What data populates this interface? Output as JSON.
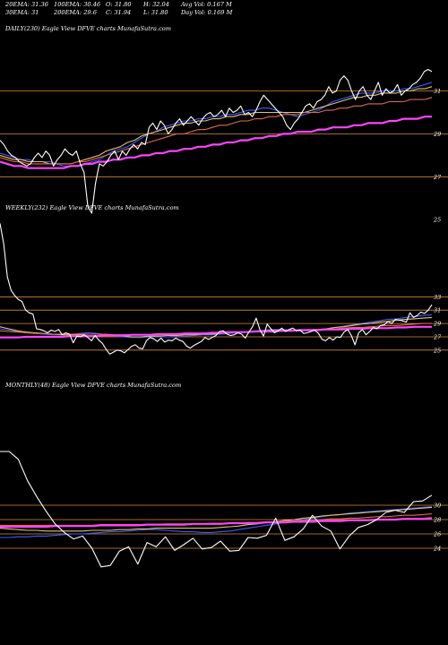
{
  "header": {
    "row1": [
      "20EMA: 31.36",
      "100EMA: 30.46",
      "O: 31.80",
      "H: 32.04",
      "Avg Vol: 0.167 M"
    ],
    "row2": [
      "30EMA: 31",
      "200EMA: 29.6",
      "C: 31.94",
      "L: 31.80",
      "Day Vol: 0.169 M"
    ]
  },
  "chart_data": [
    {
      "type": "line",
      "title": "DAILY(230) Eagle   View  DFVE charts MunafaSutra.com",
      "y_ticks": [
        31,
        29,
        27,
        25
      ],
      "ylim": [
        24.3,
        33.4
      ],
      "hlines": [
        31,
        29,
        27
      ],
      "xlim": [
        0,
        229
      ],
      "series": [
        {
          "role": "price",
          "color": "#ffffff",
          "values": [
            28.7,
            28.5,
            28.2,
            28.0,
            27.9,
            27.7,
            27.6,
            27.5,
            27.6,
            27.9,
            28.1,
            27.9,
            28.2,
            28.0,
            27.5,
            27.8,
            28.0,
            28.3,
            28.1,
            28.0,
            28.2,
            27.6,
            27.2,
            25.6,
            25.3,
            26.7,
            27.6,
            27.5,
            27.7,
            28.0,
            28.2,
            27.8,
            28.2,
            28.0,
            28.3,
            28.5,
            28.3,
            28.6,
            28.5,
            29.3,
            29.5,
            29.2,
            29.6,
            29.4,
            29.0,
            29.2,
            29.5,
            29.7,
            29.4,
            29.6,
            29.8,
            29.6,
            29.4,
            29.7,
            29.9,
            30.0,
            29.8,
            29.9,
            30.1,
            29.8,
            30.2,
            30.0,
            30.1,
            30.3,
            29.9,
            30.0,
            29.8,
            30.1,
            30.5,
            30.8,
            30.6,
            30.4,
            30.2,
            30.0,
            29.8,
            29.4,
            29.2,
            29.5,
            29.7,
            30.0,
            30.3,
            30.4,
            30.2,
            30.5,
            30.6,
            30.8,
            31.2,
            30.9,
            31.0,
            31.5,
            31.7,
            31.5,
            31.0,
            30.6,
            31.0,
            31.2,
            30.8,
            30.6,
            31.0,
            31.4,
            30.8,
            31.1,
            30.9,
            31.0,
            31.3,
            30.8,
            31.0,
            31.1,
            31.3,
            31.4,
            31.6,
            31.9,
            32.0,
            31.9
          ]
        },
        {
          "role": "ema-20",
          "color": "#3a5dff",
          "values": [
            28.1,
            28.0,
            27.9,
            27.8,
            27.8,
            27.7,
            27.7,
            27.7,
            27.6,
            27.5,
            27.5,
            27.5,
            27.6,
            27.7,
            27.8,
            28.0,
            28.2,
            28.3,
            28.4,
            28.6,
            28.8,
            29.0,
            29.1,
            29.3,
            29.4,
            29.5,
            29.6,
            29.6,
            29.7,
            29.7,
            29.8,
            29.8,
            29.9,
            29.9,
            30.0,
            30.1,
            30.1,
            30.2,
            30.2,
            30.1,
            30.0,
            29.9,
            29.8,
            29.9,
            30.0,
            30.1,
            30.3,
            30.5,
            30.6,
            30.7,
            30.8,
            30.9,
            30.9,
            30.9,
            31.0,
            31.0,
            31.0,
            31.1,
            31.1,
            31.2,
            31.3,
            31.4
          ]
        },
        {
          "role": "ema-30",
          "color": "#e8c070",
          "values": [
            28.0,
            27.9,
            27.8,
            27.8,
            27.7,
            27.7,
            27.7,
            27.6,
            27.6,
            27.6,
            27.6,
            27.7,
            27.8,
            27.9,
            28.0,
            28.2,
            28.3,
            28.4,
            28.6,
            28.7,
            28.9,
            29.0,
            29.1,
            29.2,
            29.3,
            29.4,
            29.5,
            29.5,
            29.6,
            29.6,
            29.7,
            29.7,
            29.8,
            29.8,
            29.9,
            29.9,
            30.0,
            30.0,
            30.0,
            30.0,
            30.0,
            30.0,
            30.0,
            30.0,
            30.1,
            30.2,
            30.3,
            30.4,
            30.5,
            30.6,
            30.7,
            30.7,
            30.8,
            30.8,
            30.9,
            30.9,
            30.9,
            31.0,
            31.0,
            31.1,
            31.1,
            31.2
          ]
        },
        {
          "role": "ema-100",
          "color": "#e06a4a",
          "values": [
            27.9,
            27.8,
            27.7,
            27.7,
            27.6,
            27.6,
            27.6,
            27.6,
            27.6,
            27.6,
            27.6,
            27.7,
            27.7,
            27.8,
            27.9,
            28.0,
            28.1,
            28.2,
            28.3,
            28.4,
            28.5,
            28.6,
            28.7,
            28.8,
            28.9,
            29.0,
            29.0,
            29.1,
            29.2,
            29.2,
            29.3,
            29.4,
            29.4,
            29.5,
            29.6,
            29.6,
            29.7,
            29.7,
            29.8,
            29.8,
            29.9,
            29.9,
            29.9,
            30.0,
            30.0,
            30.0,
            30.1,
            30.1,
            30.2,
            30.2,
            30.3,
            30.3,
            30.4,
            30.4,
            30.4,
            30.5,
            30.5,
            30.5,
            30.6,
            30.6,
            30.6,
            30.7
          ]
        },
        {
          "role": "ema-200",
          "color": "#ff44ff",
          "values": [
            27.7,
            27.6,
            27.5,
            27.5,
            27.4,
            27.4,
            27.4,
            27.4,
            27.4,
            27.4,
            27.5,
            27.5,
            27.6,
            27.6,
            27.7,
            27.7,
            27.8,
            27.8,
            27.9,
            27.9,
            28.0,
            28.0,
            28.1,
            28.1,
            28.2,
            28.2,
            28.3,
            28.3,
            28.4,
            28.4,
            28.5,
            28.5,
            28.6,
            28.6,
            28.7,
            28.7,
            28.8,
            28.8,
            28.9,
            28.9,
            29.0,
            29.0,
            29.1,
            29.1,
            29.1,
            29.2,
            29.2,
            29.3,
            29.3,
            29.3,
            29.4,
            29.4,
            29.5,
            29.5,
            29.5,
            29.6,
            29.6,
            29.7,
            29.7,
            29.7,
            29.8,
            29.8
          ]
        }
      ]
    },
    {
      "type": "line",
      "title": "WEEKLY(232) Eagle   View  DFVE charts MunafaSutra.com",
      "y_ticks": [
        33,
        31,
        29,
        27,
        25
      ],
      "ylim": [
        23.5,
        45
      ],
      "hlines": [
        33,
        31,
        29,
        27,
        25
      ],
      "xlim": [
        0,
        231
      ],
      "series": [
        {
          "role": "price",
          "color": "#ffffff",
          "values": [
            44,
            41,
            36,
            34,
            33.2,
            32.6,
            32.3,
            31,
            30.6,
            30.4,
            28.2,
            28.1,
            27.9,
            27.6,
            28.0,
            27.8,
            28.1,
            27.3,
            27.6,
            27.4,
            26.1,
            27.1,
            27.0,
            27.3,
            26.9,
            26.4,
            27.2,
            26.5,
            26.0,
            25.1,
            24.4,
            24.7,
            25.0,
            24.9,
            24.6,
            25.1,
            25.6,
            25.8,
            25.3,
            25.2,
            26.4,
            26.9,
            26.7,
            26.3,
            26.8,
            26.2,
            26.5,
            26.4,
            26.8,
            26.5,
            26.3,
            25.6,
            25.3,
            25.7,
            26.0,
            26.3,
            26.9,
            26.6,
            26.9,
            27.2,
            27.8,
            27.9,
            27.4,
            27.2,
            27.3,
            27.6,
            27.4,
            26.8,
            27.7,
            28.5,
            29.8,
            28.1,
            27.1,
            28.9,
            28.2,
            27.6,
            27.9,
            28.3,
            27.8,
            28.1,
            28.3,
            27.9,
            28.0,
            27.5,
            27.6,
            27.8,
            28.0,
            27.5,
            26.6,
            26.4,
            26.9,
            26.5,
            27.0,
            26.9,
            27.7,
            28.1,
            27.2,
            25.8,
            27.6,
            28.1,
            27.3,
            27.8,
            28.4,
            28.2,
            28.7,
            28.8,
            29.3,
            29.0,
            29.6,
            29.5,
            29.4,
            29.2,
            30.6,
            29.9,
            30.2,
            30.7,
            30.5,
            31.0,
            31.8
          ]
        },
        {
          "role": "ema-20",
          "color": "#3a5dff",
          "values": [
            28.2,
            28.0,
            27.8,
            27.6,
            27.5,
            27.4,
            27.3,
            27.3,
            27.3,
            27.5,
            27.6,
            27.5,
            27.3,
            27.1,
            27.0,
            26.9,
            26.9,
            27.0,
            27.0,
            27.0,
            27.1,
            27.1,
            27.2,
            27.3,
            27.3,
            27.4,
            27.5,
            27.6,
            27.7,
            27.9,
            28.0,
            28.1,
            28.1,
            28.0,
            27.9,
            27.9,
            28.0,
            28.2,
            28.4,
            28.6,
            28.8,
            29.0,
            29.2,
            29.4,
            29.6,
            29.7,
            29.9,
            30.0,
            30.2,
            30.3
          ]
        },
        {
          "role": "ema-30",
          "color": "#e8c070",
          "values": [
            28.5,
            28.2,
            27.9,
            27.7,
            27.6,
            27.5,
            27.4,
            27.3,
            27.3,
            27.3,
            27.4,
            27.4,
            27.3,
            27.2,
            27.1,
            27.0,
            27.0,
            27.1,
            27.1,
            27.2,
            27.2,
            27.3,
            27.3,
            27.4,
            27.4,
            27.5,
            27.6,
            27.7,
            27.7,
            27.8,
            27.9,
            28.0,
            28.0,
            28.0,
            28.0,
            28.0,
            28.1,
            28.2,
            28.4,
            28.5,
            28.7,
            28.9,
            29.0,
            29.2,
            29.3,
            29.5,
            29.6,
            29.7,
            29.8,
            29.9
          ]
        },
        {
          "role": "ema-100",
          "color": "#e06a4a",
          "values": [
            27.9,
            27.8,
            27.7,
            27.6,
            27.5,
            27.5,
            27.4,
            27.4,
            27.4,
            27.4,
            27.4,
            27.4,
            27.4,
            27.3,
            27.3,
            27.3,
            27.3,
            27.3,
            27.3,
            27.4,
            27.4,
            27.4,
            27.5,
            27.5,
            27.5,
            27.6,
            27.6,
            27.7,
            27.7,
            27.8,
            27.8,
            27.9,
            27.9,
            28.0,
            28.0,
            28.1,
            28.1,
            28.2,
            28.2,
            28.3,
            28.4,
            28.4,
            28.5,
            28.6,
            28.7,
            28.7,
            28.8,
            28.9,
            29.0,
            29.0
          ]
        },
        {
          "role": "ema-200",
          "color": "#ff44ff",
          "values": [
            26.9,
            26.9,
            26.9,
            27.0,
            27.0,
            27.0,
            27.0,
            27.0,
            27.1,
            27.1,
            27.1,
            27.1,
            27.2,
            27.2,
            27.2,
            27.3,
            27.3,
            27.3,
            27.4,
            27.4,
            27.4,
            27.5,
            27.5,
            27.5,
            27.6,
            27.6,
            27.7,
            27.7,
            27.7,
            27.8,
            27.8,
            27.8,
            27.9,
            27.9,
            28.0,
            28.0,
            28.0,
            28.1,
            28.1,
            28.1,
            28.2,
            28.2,
            28.3,
            28.3,
            28.3,
            28.4,
            28.4,
            28.5,
            28.5,
            28.5
          ]
        }
      ]
    },
    {
      "type": "line",
      "title": "MONTHLY(48) Eagle   View  DFVE charts MunafaSutra.com",
      "y_ticks": [
        30,
        28,
        26,
        24
      ],
      "ylim": [
        22.5,
        39.5
      ],
      "hlines": [
        30,
        28,
        26,
        24
      ],
      "xlim": [
        0,
        47
      ],
      "series": [
        {
          "role": "price",
          "color": "#ffffff",
          "values": [
            37.5,
            37.5,
            36.4,
            33.4,
            31.2,
            29.2,
            27.4,
            26.2,
            25.3,
            25.7,
            24.0,
            21.4,
            21.6,
            23.6,
            24.2,
            21.8,
            24.8,
            24.2,
            25.6,
            23.7,
            24.5,
            25.4,
            23.9,
            24.1,
            25.0,
            23.6,
            23.7,
            25.5,
            25.4,
            25.8,
            28.2,
            25.1,
            25.6,
            26.7,
            28.6,
            27.1,
            26.4,
            23.9,
            25.7,
            26.9,
            27.3,
            28.0,
            29.0,
            29.3,
            29.0,
            30.5,
            30.6,
            31.4
          ]
        },
        {
          "role": "ema-20",
          "color": "#3a5dff",
          "values": [
            25.5,
            25.5,
            25.6,
            25.6,
            25.7,
            25.7,
            25.8,
            25.9,
            26.0,
            26.0,
            26.1,
            26.2,
            26.3,
            26.3,
            26.4,
            26.5,
            26.6,
            26.6,
            26.5,
            26.4,
            26.3,
            26.3,
            26.2,
            26.2,
            26.3,
            26.4,
            26.6,
            26.8,
            27.0,
            27.2,
            27.4,
            27.6,
            27.8,
            28.0,
            28.2,
            28.4,
            28.6,
            28.7,
            28.9,
            29.0,
            29.1,
            29.2,
            29.3,
            29.4,
            29.5,
            29.6,
            29.7,
            29.8
          ]
        },
        {
          "role": "ema-30",
          "color": "#e8c070",
          "values": [
            26.8,
            26.7,
            26.6,
            26.5,
            26.5,
            26.4,
            26.4,
            26.4,
            26.4,
            26.4,
            26.5,
            26.5,
            26.5,
            26.6,
            26.6,
            26.7,
            26.7,
            26.8,
            26.8,
            26.8,
            26.8,
            26.8,
            26.8,
            26.8,
            26.9,
            27.0,
            27.1,
            27.3,
            27.4,
            27.6,
            27.7,
            27.9,
            28.0,
            28.2,
            28.3,
            28.5,
            28.6,
            28.7,
            28.8,
            28.9,
            29.0,
            29.1,
            29.2,
            29.3,
            29.4,
            29.5,
            29.6,
            29.7
          ]
        },
        {
          "role": "ema-100",
          "color": "#e06a4a",
          "values": [
            27.2,
            27.2,
            27.2,
            27.2,
            27.2,
            27.2,
            27.2,
            27.2,
            27.2,
            27.2,
            27.2,
            27.3,
            27.3,
            27.3,
            27.3,
            27.3,
            27.3,
            27.3,
            27.4,
            27.4,
            27.4,
            27.4,
            27.4,
            27.5,
            27.5,
            27.5,
            27.5,
            27.6,
            27.6,
            27.7,
            27.7,
            27.8,
            27.8,
            27.9,
            27.9,
            28.0,
            28.1,
            28.1,
            28.2,
            28.2,
            28.3,
            28.4,
            28.4,
            28.5,
            28.6,
            28.6,
            28.7,
            28.8
          ]
        },
        {
          "role": "ema-200",
          "color": "#ff44ff",
          "values": [
            27.0,
            27.0,
            27.0,
            27.0,
            27.0,
            27.0,
            27.1,
            27.1,
            27.1,
            27.1,
            27.1,
            27.2,
            27.2,
            27.2,
            27.2,
            27.2,
            27.3,
            27.3,
            27.3,
            27.3,
            27.3,
            27.4,
            27.4,
            27.4,
            27.4,
            27.5,
            27.5,
            27.5,
            27.5,
            27.6,
            27.6,
            27.6,
            27.7,
            27.7,
            27.7,
            27.8,
            27.8,
            27.8,
            27.9,
            27.9,
            27.9,
            28.0,
            28.0,
            28.0,
            28.1,
            28.1,
            28.1,
            28.2
          ]
        }
      ]
    }
  ],
  "colors": {
    "background": "#000000",
    "text": "#ffffff",
    "gridline": "#d8893a"
  }
}
